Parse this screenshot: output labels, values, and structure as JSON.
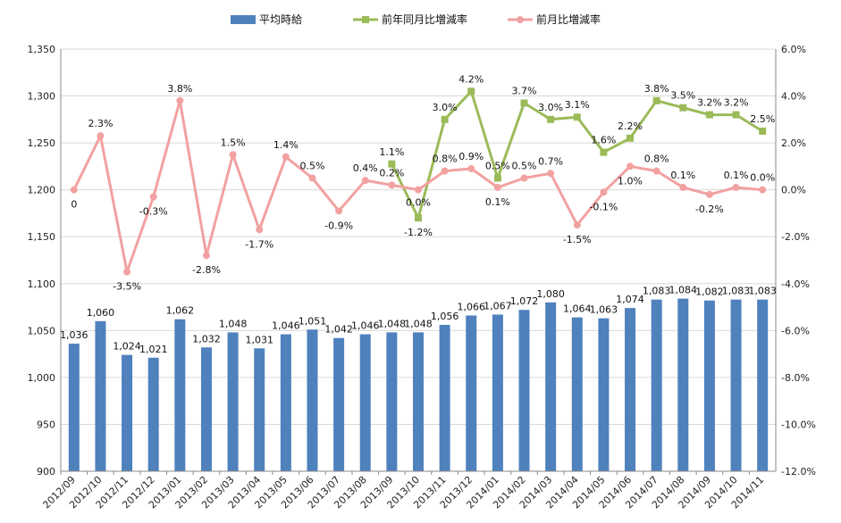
{
  "chart_data": {
    "type": "bar",
    "categories": [
      "2012/09",
      "2012/10",
      "2012/11",
      "2012/12",
      "2013/01",
      "2013/02",
      "2013/03",
      "2013/04",
      "2013/05",
      "2013/06",
      "2013/07",
      "2013/08",
      "2013/09",
      "2013/10",
      "2013/11",
      "2013/12",
      "2014/01",
      "2014/02",
      "2014/03",
      "2014/04",
      "2014/05",
      "2014/06",
      "2014/07",
      "2014/08",
      "2014/09",
      "2014/10",
      "2014/11"
    ],
    "bar_series": {
      "name": "平均時給",
      "color": "#4F81BD",
      "values": [
        1036,
        1060,
        1024,
        1021,
        1062,
        1032,
        1048,
        1031,
        1046,
        1051,
        1042,
        1046,
        1048,
        1048,
        1056,
        1066,
        1067,
        1072,
        1080,
        1064,
        1063,
        1074,
        1083,
        1084,
        1082,
        1083,
        1083
      ],
      "labels": [
        "1,036",
        "1,060",
        "1,024",
        "1,021",
        "1,062",
        "1,032",
        "1,048",
        "1,031",
        "1,046",
        "1,051",
        "1,042",
        "1,046",
        "1,048",
        "1,048",
        "1,056",
        "1,066",
        "1,067",
        "1,072",
        "1,080",
        "1,064",
        "1,063",
        "1,074",
        "1,083",
        "1,084",
        "1,082",
        "1,083",
        "1,083"
      ]
    },
    "line_series": [
      {
        "name": "前年同月比増減率",
        "color": "#9BBB59",
        "marker": "square",
        "values": [
          null,
          null,
          null,
          null,
          null,
          null,
          null,
          null,
          null,
          null,
          null,
          null,
          1.1,
          -1.2,
          3.0,
          4.2,
          0.5,
          3.7,
          3.0,
          3.1,
          1.6,
          2.2,
          3.8,
          3.5,
          3.2,
          3.2,
          2.5
        ],
        "labels": [
          null,
          null,
          null,
          null,
          null,
          null,
          null,
          null,
          null,
          null,
          null,
          null,
          "1.1%",
          "-1.2%",
          "3.0%",
          "4.2%",
          "0.5%",
          "3.7%",
          "3.0%",
          "3.1%",
          "1.6%",
          "2.2%",
          "3.8%",
          "3.5%",
          "3.2%",
          "3.2%",
          "2.5%"
        ]
      },
      {
        "name": "前月比増減率",
        "color": "#F2A1A1",
        "marker": "circle",
        "values": [
          0,
          2.3,
          -3.5,
          -0.3,
          3.8,
          -2.8,
          1.5,
          -1.7,
          1.4,
          0.5,
          -0.9,
          0.4,
          0.2,
          0.0,
          0.8,
          0.9,
          0.1,
          0.5,
          0.7,
          -1.5,
          -0.1,
          1.0,
          0.8,
          0.1,
          -0.2,
          0.1,
          0.0
        ],
        "labels": [
          "0",
          "2.3%",
          "-3.5%",
          "-0.3%",
          "3.8%",
          "-2.8%",
          "1.5%",
          "-1.7%",
          "1.4%",
          "0.5%",
          "-0.9%",
          "0.4%",
          "0.2%",
          "0.0%",
          "0.8%",
          "0.9%",
          "0.1%",
          "0.5%",
          "0.7%",
          "-1.5%",
          "-0.1%",
          "1.0%",
          "0.8%",
          "0.1%",
          "-0.2%",
          "0.1%",
          "0.0%"
        ]
      }
    ],
    "left_axis": {
      "min": 900,
      "max": 1350,
      "step": 50,
      "tick_labels": [
        "900",
        "950",
        "1,000",
        "1,050",
        "1,100",
        "1,150",
        "1,200",
        "1,250",
        "1,300",
        "1,350"
      ]
    },
    "right_axis": {
      "min": -12,
      "max": 6,
      "step": 2,
      "tick_labels": [
        "-12.0%",
        "-10.0%",
        "-8.0%",
        "-6.0%",
        "-4.0%",
        "-2.0%",
        "0.0%",
        "2.0%",
        "4.0%",
        "6.0%"
      ]
    },
    "grid": true,
    "legend_position": "top"
  }
}
